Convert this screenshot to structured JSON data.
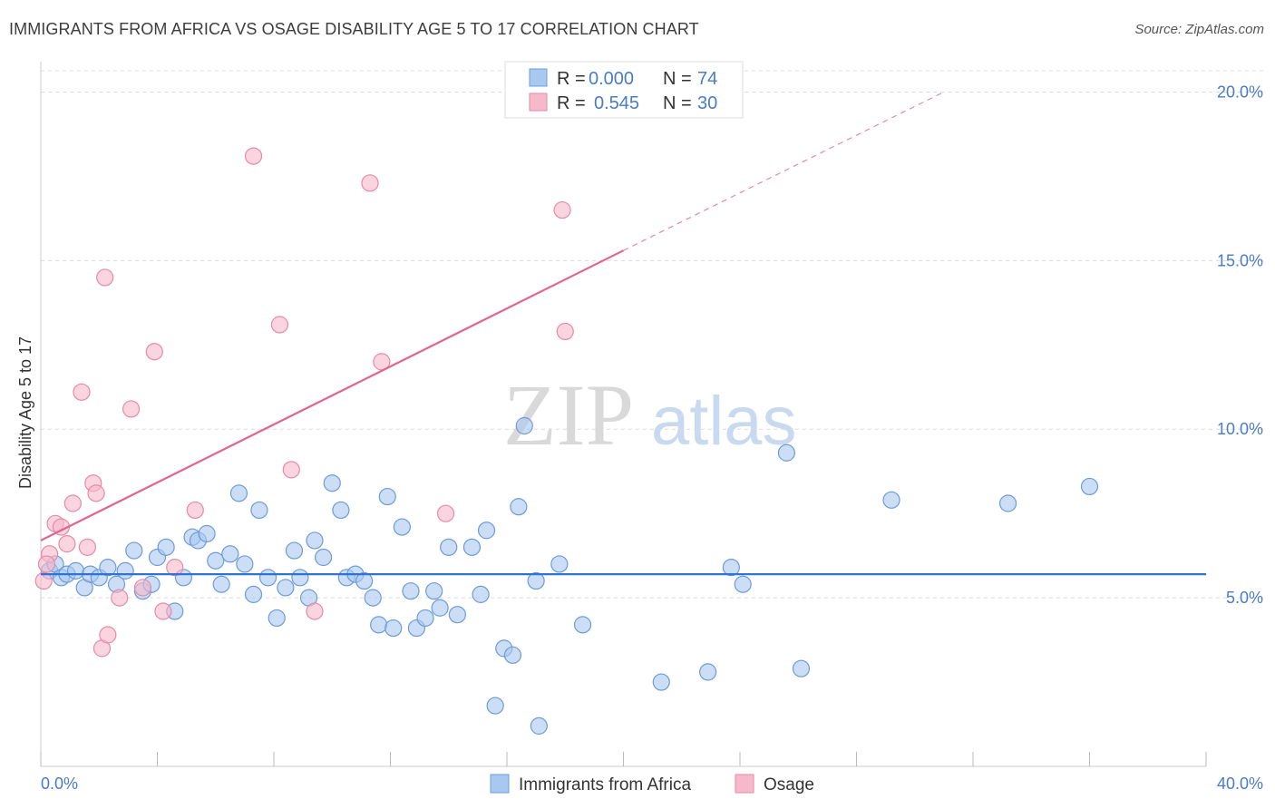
{
  "header": {
    "title": "IMMIGRANTS FROM AFRICA VS OSAGE DISABILITY AGE 5 TO 17 CORRELATION CHART",
    "source": "Source: ZipAtlas.com"
  },
  "watermark": {
    "zip": "ZIP",
    "atlas": "atlas"
  },
  "colors": {
    "blue_fill": "#a9c8f0",
    "blue_stroke": "#6d9bd8",
    "blue_line": "#2f74d0",
    "pink_fill": "#f6b9cc",
    "pink_stroke": "#e68aa6",
    "pink_line": "#e0668f",
    "tick_text": "#4a7bc8",
    "grid": "#dcdcdc"
  },
  "legend": {
    "rows": [
      {
        "r_label": "R =",
        "r_value": "0.000",
        "n_label": "N =",
        "n_value": "74"
      },
      {
        "r_label": "R =",
        "r_value": "0.545",
        "n_label": "N =",
        "n_value": "30"
      }
    ]
  },
  "bottom_legend": {
    "items": [
      {
        "label": "Immigrants from Africa"
      },
      {
        "label": "Osage"
      }
    ]
  },
  "chart_data": {
    "type": "scatter",
    "title": "IMMIGRANTS FROM AFRICA VS OSAGE DISABILITY AGE 5 TO 17 CORRELATION CHART",
    "xlabel": "",
    "ylabel": "Disability Age 5 to 17",
    "xlim": [
      0,
      40
    ],
    "ylim": [
      0,
      20.9
    ],
    "x_tick_labels": [
      "0.0%",
      "40.0%"
    ],
    "y_ticks": [
      5,
      10,
      15,
      20
    ],
    "y_tick_labels": [
      "5.0%",
      "10.0%",
      "15.0%",
      "20.0%"
    ],
    "grid": true,
    "legend_placement": "top-center",
    "series": [
      {
        "name": "Immigrants from Africa",
        "color": "#a9c8f0",
        "trend": {
          "x": [
            0,
            40
          ],
          "y": [
            5.7,
            5.7
          ]
        },
        "points": [
          [
            0.3,
            5.8
          ],
          [
            0.5,
            6.0
          ],
          [
            0.7,
            5.6
          ],
          [
            0.9,
            5.7
          ],
          [
            1.2,
            5.8
          ],
          [
            1.5,
            5.3
          ],
          [
            1.7,
            5.7
          ],
          [
            2.0,
            5.6
          ],
          [
            2.3,
            5.9
          ],
          [
            2.6,
            5.4
          ],
          [
            2.9,
            5.8
          ],
          [
            3.2,
            6.4
          ],
          [
            3.5,
            5.2
          ],
          [
            3.8,
            5.4
          ],
          [
            4.0,
            6.2
          ],
          [
            4.3,
            6.5
          ],
          [
            4.6,
            4.6
          ],
          [
            4.9,
            5.6
          ],
          [
            5.2,
            6.8
          ],
          [
            5.4,
            6.7
          ],
          [
            5.7,
            6.9
          ],
          [
            6.0,
            6.1
          ],
          [
            6.2,
            5.4
          ],
          [
            6.5,
            6.3
          ],
          [
            6.8,
            8.1
          ],
          [
            7.0,
            6.0
          ],
          [
            7.3,
            5.1
          ],
          [
            7.5,
            7.6
          ],
          [
            7.8,
            5.6
          ],
          [
            8.1,
            4.4
          ],
          [
            8.4,
            5.3
          ],
          [
            8.7,
            6.4
          ],
          [
            8.9,
            5.6
          ],
          [
            9.2,
            5.0
          ],
          [
            9.4,
            6.7
          ],
          [
            9.7,
            6.2
          ],
          [
            10.0,
            8.4
          ],
          [
            10.3,
            7.6
          ],
          [
            10.5,
            5.6
          ],
          [
            10.8,
            5.7
          ],
          [
            11.1,
            5.5
          ],
          [
            11.4,
            5.0
          ],
          [
            11.6,
            4.2
          ],
          [
            11.9,
            8.0
          ],
          [
            12.1,
            4.1
          ],
          [
            12.4,
            7.1
          ],
          [
            12.7,
            5.2
          ],
          [
            12.9,
            4.1
          ],
          [
            13.2,
            4.4
          ],
          [
            13.5,
            5.2
          ],
          [
            13.7,
            4.7
          ],
          [
            14.0,
            6.5
          ],
          [
            14.3,
            4.5
          ],
          [
            14.8,
            6.5
          ],
          [
            15.1,
            5.1
          ],
          [
            15.3,
            7.0
          ],
          [
            15.6,
            1.8
          ],
          [
            15.9,
            3.5
          ],
          [
            16.2,
            3.3
          ],
          [
            16.4,
            7.7
          ],
          [
            16.6,
            10.1
          ],
          [
            17.0,
            5.5
          ],
          [
            17.1,
            1.2
          ],
          [
            17.8,
            6.0
          ],
          [
            18.6,
            4.2
          ],
          [
            21.3,
            2.5
          ],
          [
            22.9,
            2.8
          ],
          [
            23.7,
            5.9
          ],
          [
            24.1,
            5.4
          ],
          [
            26.1,
            2.9
          ],
          [
            25.6,
            9.3
          ],
          [
            29.2,
            7.9
          ],
          [
            33.2,
            7.8
          ],
          [
            36.0,
            8.3
          ]
        ]
      },
      {
        "name": "Osage",
        "color": "#f6b9cc",
        "trend": {
          "x": [
            0,
            20
          ],
          "y": [
            6.7,
            15.3
          ]
        },
        "trend_dashed": {
          "x": [
            20,
            31
          ],
          "y": [
            15.3,
            20.0
          ]
        },
        "points": [
          [
            0.1,
            5.5
          ],
          [
            0.3,
            6.3
          ],
          [
            0.5,
            7.2
          ],
          [
            0.7,
            7.1
          ],
          [
            0.9,
            6.6
          ],
          [
            1.1,
            7.8
          ],
          [
            1.4,
            11.1
          ],
          [
            1.6,
            6.5
          ],
          [
            1.8,
            8.4
          ],
          [
            1.9,
            8.1
          ],
          [
            2.1,
            3.5
          ],
          [
            2.2,
            14.5
          ],
          [
            2.3,
            3.9
          ],
          [
            2.7,
            5.0
          ],
          [
            3.1,
            10.6
          ],
          [
            3.5,
            5.3
          ],
          [
            3.9,
            12.3
          ],
          [
            4.2,
            4.6
          ],
          [
            5.3,
            7.6
          ],
          [
            7.3,
            18.1
          ],
          [
            8.2,
            13.1
          ],
          [
            8.6,
            8.8
          ],
          [
            9.4,
            4.6
          ],
          [
            11.3,
            17.3
          ],
          [
            11.7,
            12.0
          ],
          [
            13.9,
            7.5
          ],
          [
            17.9,
            16.5
          ],
          [
            18.0,
            12.9
          ],
          [
            4.6,
            5.9
          ],
          [
            0.2,
            6.0
          ]
        ]
      }
    ]
  }
}
